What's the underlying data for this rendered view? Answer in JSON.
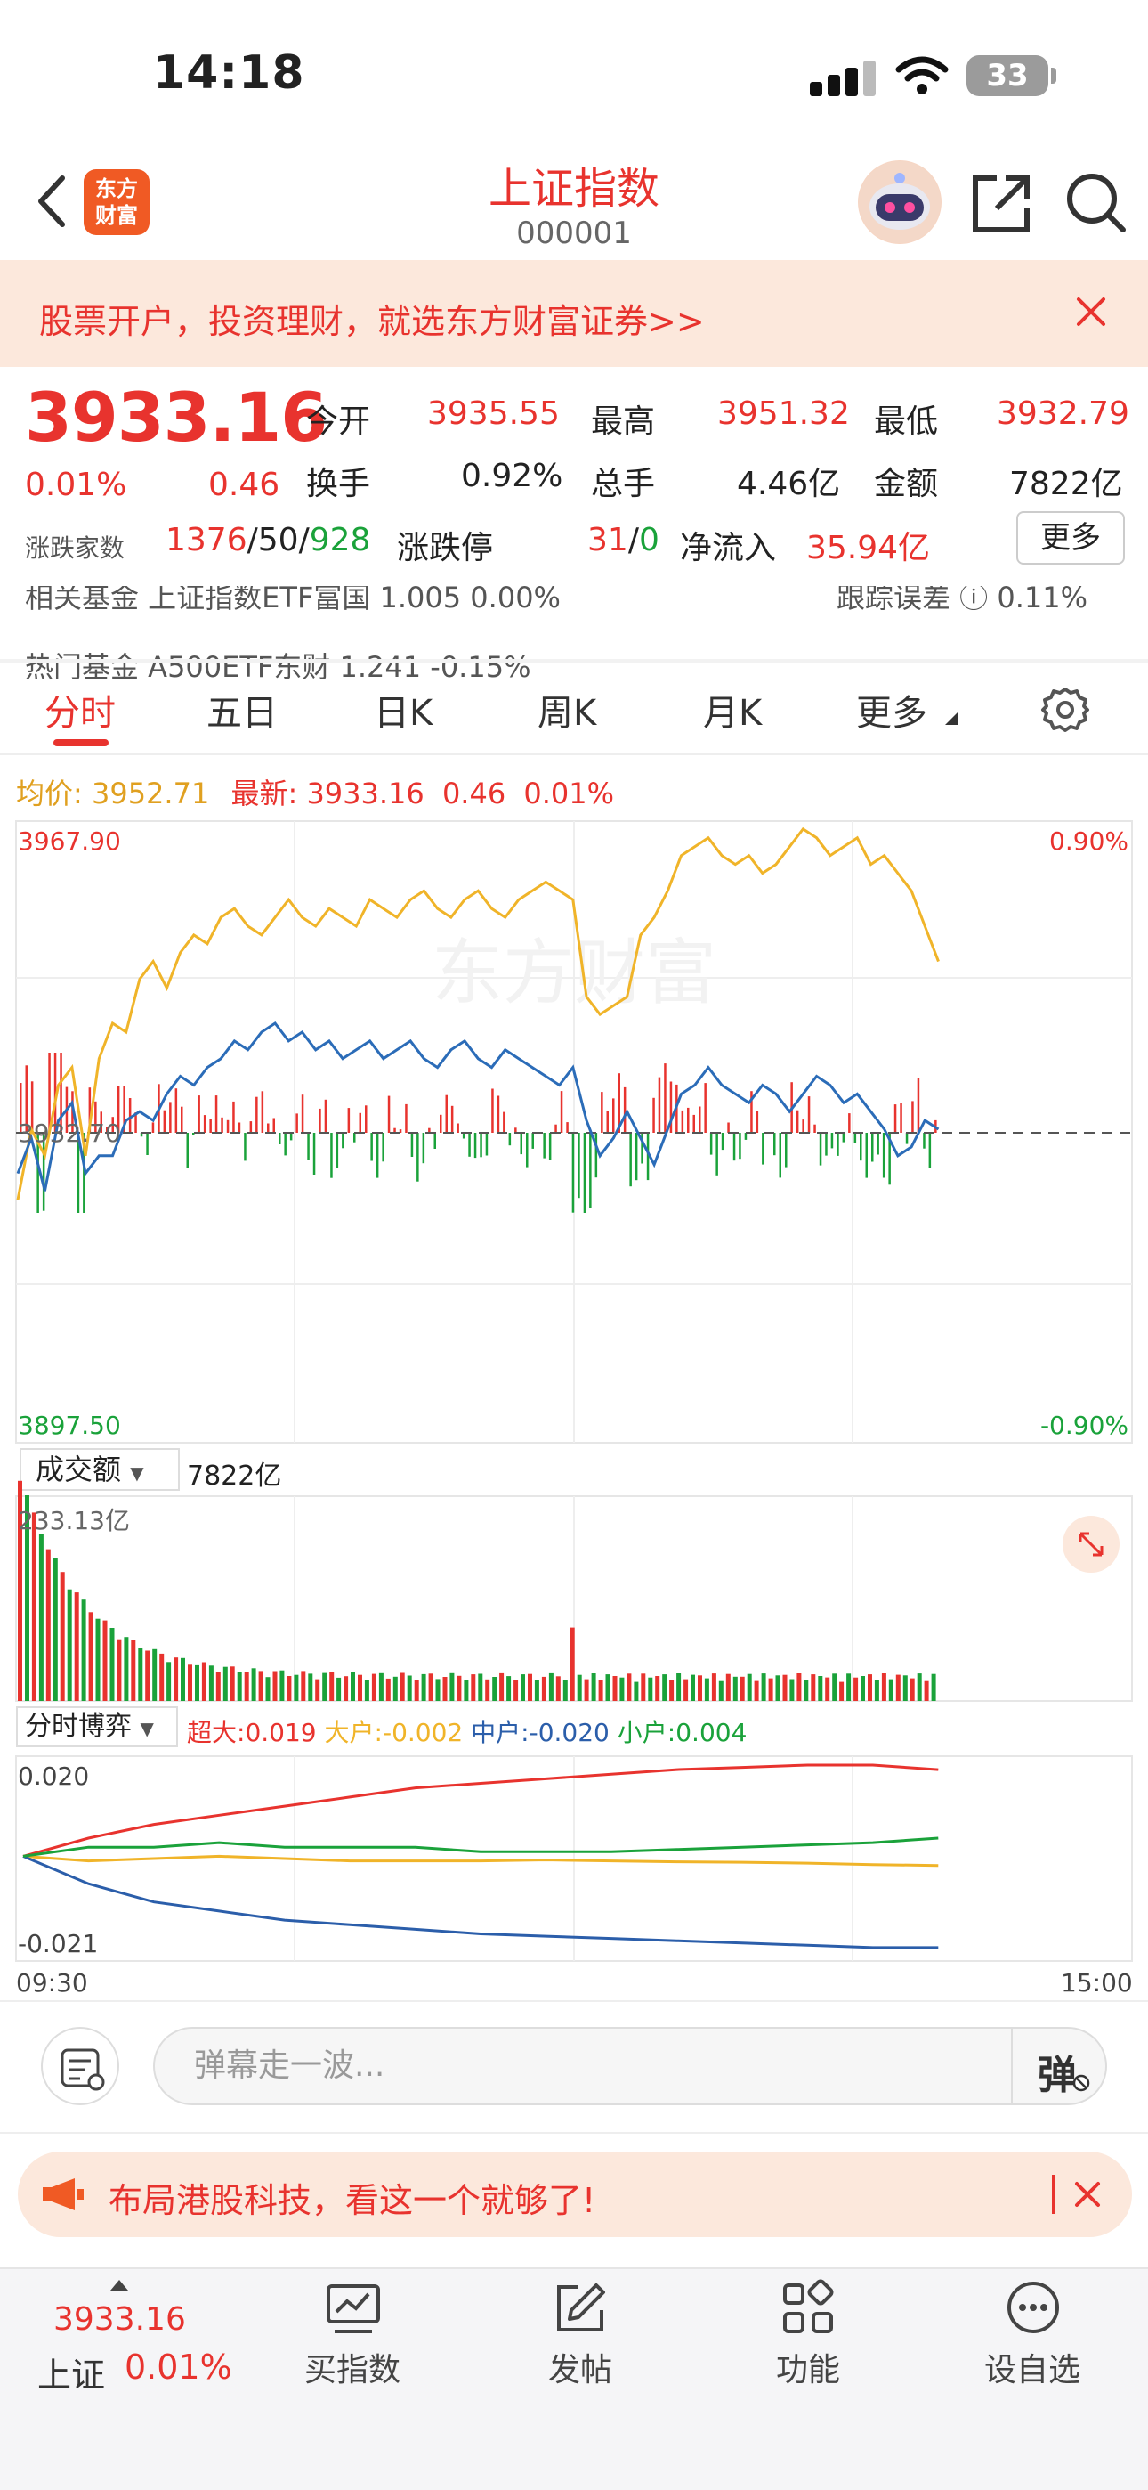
{
  "status": {
    "time": "14:18",
    "battery": "33"
  },
  "nav": {
    "logo_line1": "东方",
    "logo_line2": "财富",
    "title": "上证指数",
    "code": "000001"
  },
  "banner": {
    "text": "股票开户，投资理财，就选东方财富证券>>"
  },
  "quote": {
    "price": "3933.16",
    "change_pct": "0.01%",
    "change": "0.46",
    "open_label": "今开",
    "open": "3935.55",
    "high_label": "最高",
    "high": "3951.32",
    "low_label": "最低",
    "low": "3932.79",
    "turnover_label": "换手",
    "turnover": "0.92%",
    "volume_label": "总手",
    "volume": "4.46亿",
    "amount_label": "金额",
    "amount": "7822亿",
    "breadth_label": "涨跌家数",
    "up": "1376",
    "flat": "50",
    "down": "928",
    "limit_label": "涨跌停",
    "limit_up": "31",
    "limit_down": "0",
    "inflow_label": "净流入",
    "inflow": "35.94亿",
    "more": "更多"
  },
  "funds": {
    "row1_left": "相关基金  上证指数ETF富国 1.005 0.00%",
    "row1_right": "跟踪误差 ⓘ 0.11%",
    "row2_left": "热门基金  A500ETF东财 1.241 -0.15%"
  },
  "tabs": [
    "分时",
    "五日",
    "日K",
    "周K",
    "月K",
    "更多"
  ],
  "info_line": {
    "avg_label": "均价:",
    "avg": "3952.71",
    "last_label": "最新:",
    "last": "3933.16",
    "change": "0.46",
    "pct": "0.01%"
  },
  "chart_data": [
    {
      "type": "line",
      "title": "",
      "ylim": [
        3897.5,
        3967.9
      ],
      "y_labels": {
        "top": "3967.90",
        "mid": "3932.70",
        "bottom": "3897.50",
        "top_pct": "0.90%",
        "bottom_pct": "-0.90%"
      },
      "watermark": "东方财富",
      "series": [
        {
          "name": "",
          "color": "#f0b429",
          "values": [
            3925,
            3933,
            3930,
            3938,
            3940,
            3930,
            3941,
            3945,
            3944,
            3950,
            3952,
            3949,
            3953,
            3955,
            3954,
            3957,
            3958,
            3956,
            3955,
            3957,
            3959,
            3957,
            3956,
            3958,
            3957,
            3956,
            3959,
            3958,
            3957,
            3959,
            3960,
            3958,
            3957,
            3959,
            3960,
            3958,
            3957,
            3959,
            3960,
            3961,
            3960,
            3959,
            3948,
            3946,
            3947,
            3948,
            3955,
            3957,
            3960,
            3964,
            3965,
            3966,
            3964,
            3963,
            3964,
            3962,
            3963,
            3965,
            3967,
            3966,
            3964,
            3965,
            3966,
            3963,
            3964,
            3962,
            3960,
            3956,
            3952
          ]
        },
        {
          "name": "",
          "color": "#2b6cb8",
          "values": [
            3928,
            3932,
            3926,
            3934,
            3936,
            3928,
            3930,
            3930,
            3934,
            3935,
            3934,
            3937,
            3939,
            3938,
            3940,
            3941,
            3943,
            3942,
            3944,
            3945,
            3943,
            3944,
            3942,
            3943,
            3941,
            3942,
            3943,
            3941,
            3942,
            3943,
            3941,
            3940,
            3942,
            3943,
            3941,
            3940,
            3942,
            3941,
            3940,
            3939,
            3938,
            3940,
            3934,
            3930,
            3932,
            3935,
            3932,
            3929,
            3933,
            3937,
            3938,
            3940,
            3938,
            3937,
            3936,
            3938,
            3937,
            3935,
            3937,
            3939,
            3938,
            3936,
            3937,
            3935,
            3933,
            3930,
            3931,
            3934,
            3933
          ]
        }
      ]
    },
    {
      "type": "bar",
      "title": "",
      "label": "成交额",
      "total": "7822亿",
      "max_label": "233.13亿",
      "ylim": [
        0,
        233.13
      ]
    },
    {
      "type": "line",
      "title": "",
      "label": "分时博弈",
      "ylim": [
        -0.021,
        0.02
      ],
      "y_labels": {
        "top": "0.020",
        "bottom": "-0.021"
      },
      "series": [
        {
          "name": "超大",
          "color": "#e8332e",
          "last": "0.019",
          "values": [
            0,
            0.004,
            0.007,
            0.009,
            0.011,
            0.013,
            0.015,
            0.016,
            0.017,
            0.018,
            0.019,
            0.0195,
            0.02,
            0.02,
            0.019
          ]
        },
        {
          "name": "大户",
          "color": "#f0b429",
          "last": "-0.002",
          "values": [
            0,
            -0.001,
            -0.0005,
            0,
            -0.0005,
            -0.001,
            -0.001,
            -0.001,
            -0.0008,
            -0.001,
            -0.0012,
            -0.0013,
            -0.0015,
            -0.0018,
            -0.002
          ]
        },
        {
          "name": "中户",
          "color": "#2b5eaa",
          "last": "-0.020",
          "values": [
            0,
            -0.006,
            -0.01,
            -0.012,
            -0.014,
            -0.015,
            -0.016,
            -0.017,
            -0.0175,
            -0.018,
            -0.0185,
            -0.019,
            -0.0195,
            -0.02,
            -0.02
          ]
        },
        {
          "name": "小户",
          "color": "#1aa23a",
          "last": "0.004",
          "values": [
            0,
            0.002,
            0.002,
            0.003,
            0.002,
            0.002,
            0.002,
            0.001,
            0.001,
            0.001,
            0.0015,
            0.002,
            0.0025,
            0.003,
            0.004
          ]
        }
      ],
      "x_start": "09:30",
      "x_end": "15:00"
    }
  ],
  "danmaku": {
    "placeholder": "弹幕走一波...",
    "button": "弹"
  },
  "ad": {
    "text": "布局港股科技，看这一个就够了!"
  },
  "bottom": {
    "price": "3933.16",
    "name": "上证",
    "pct": "0.01%",
    "buy": "买指数",
    "post": "发帖",
    "func": "功能",
    "watch": "设自选"
  }
}
